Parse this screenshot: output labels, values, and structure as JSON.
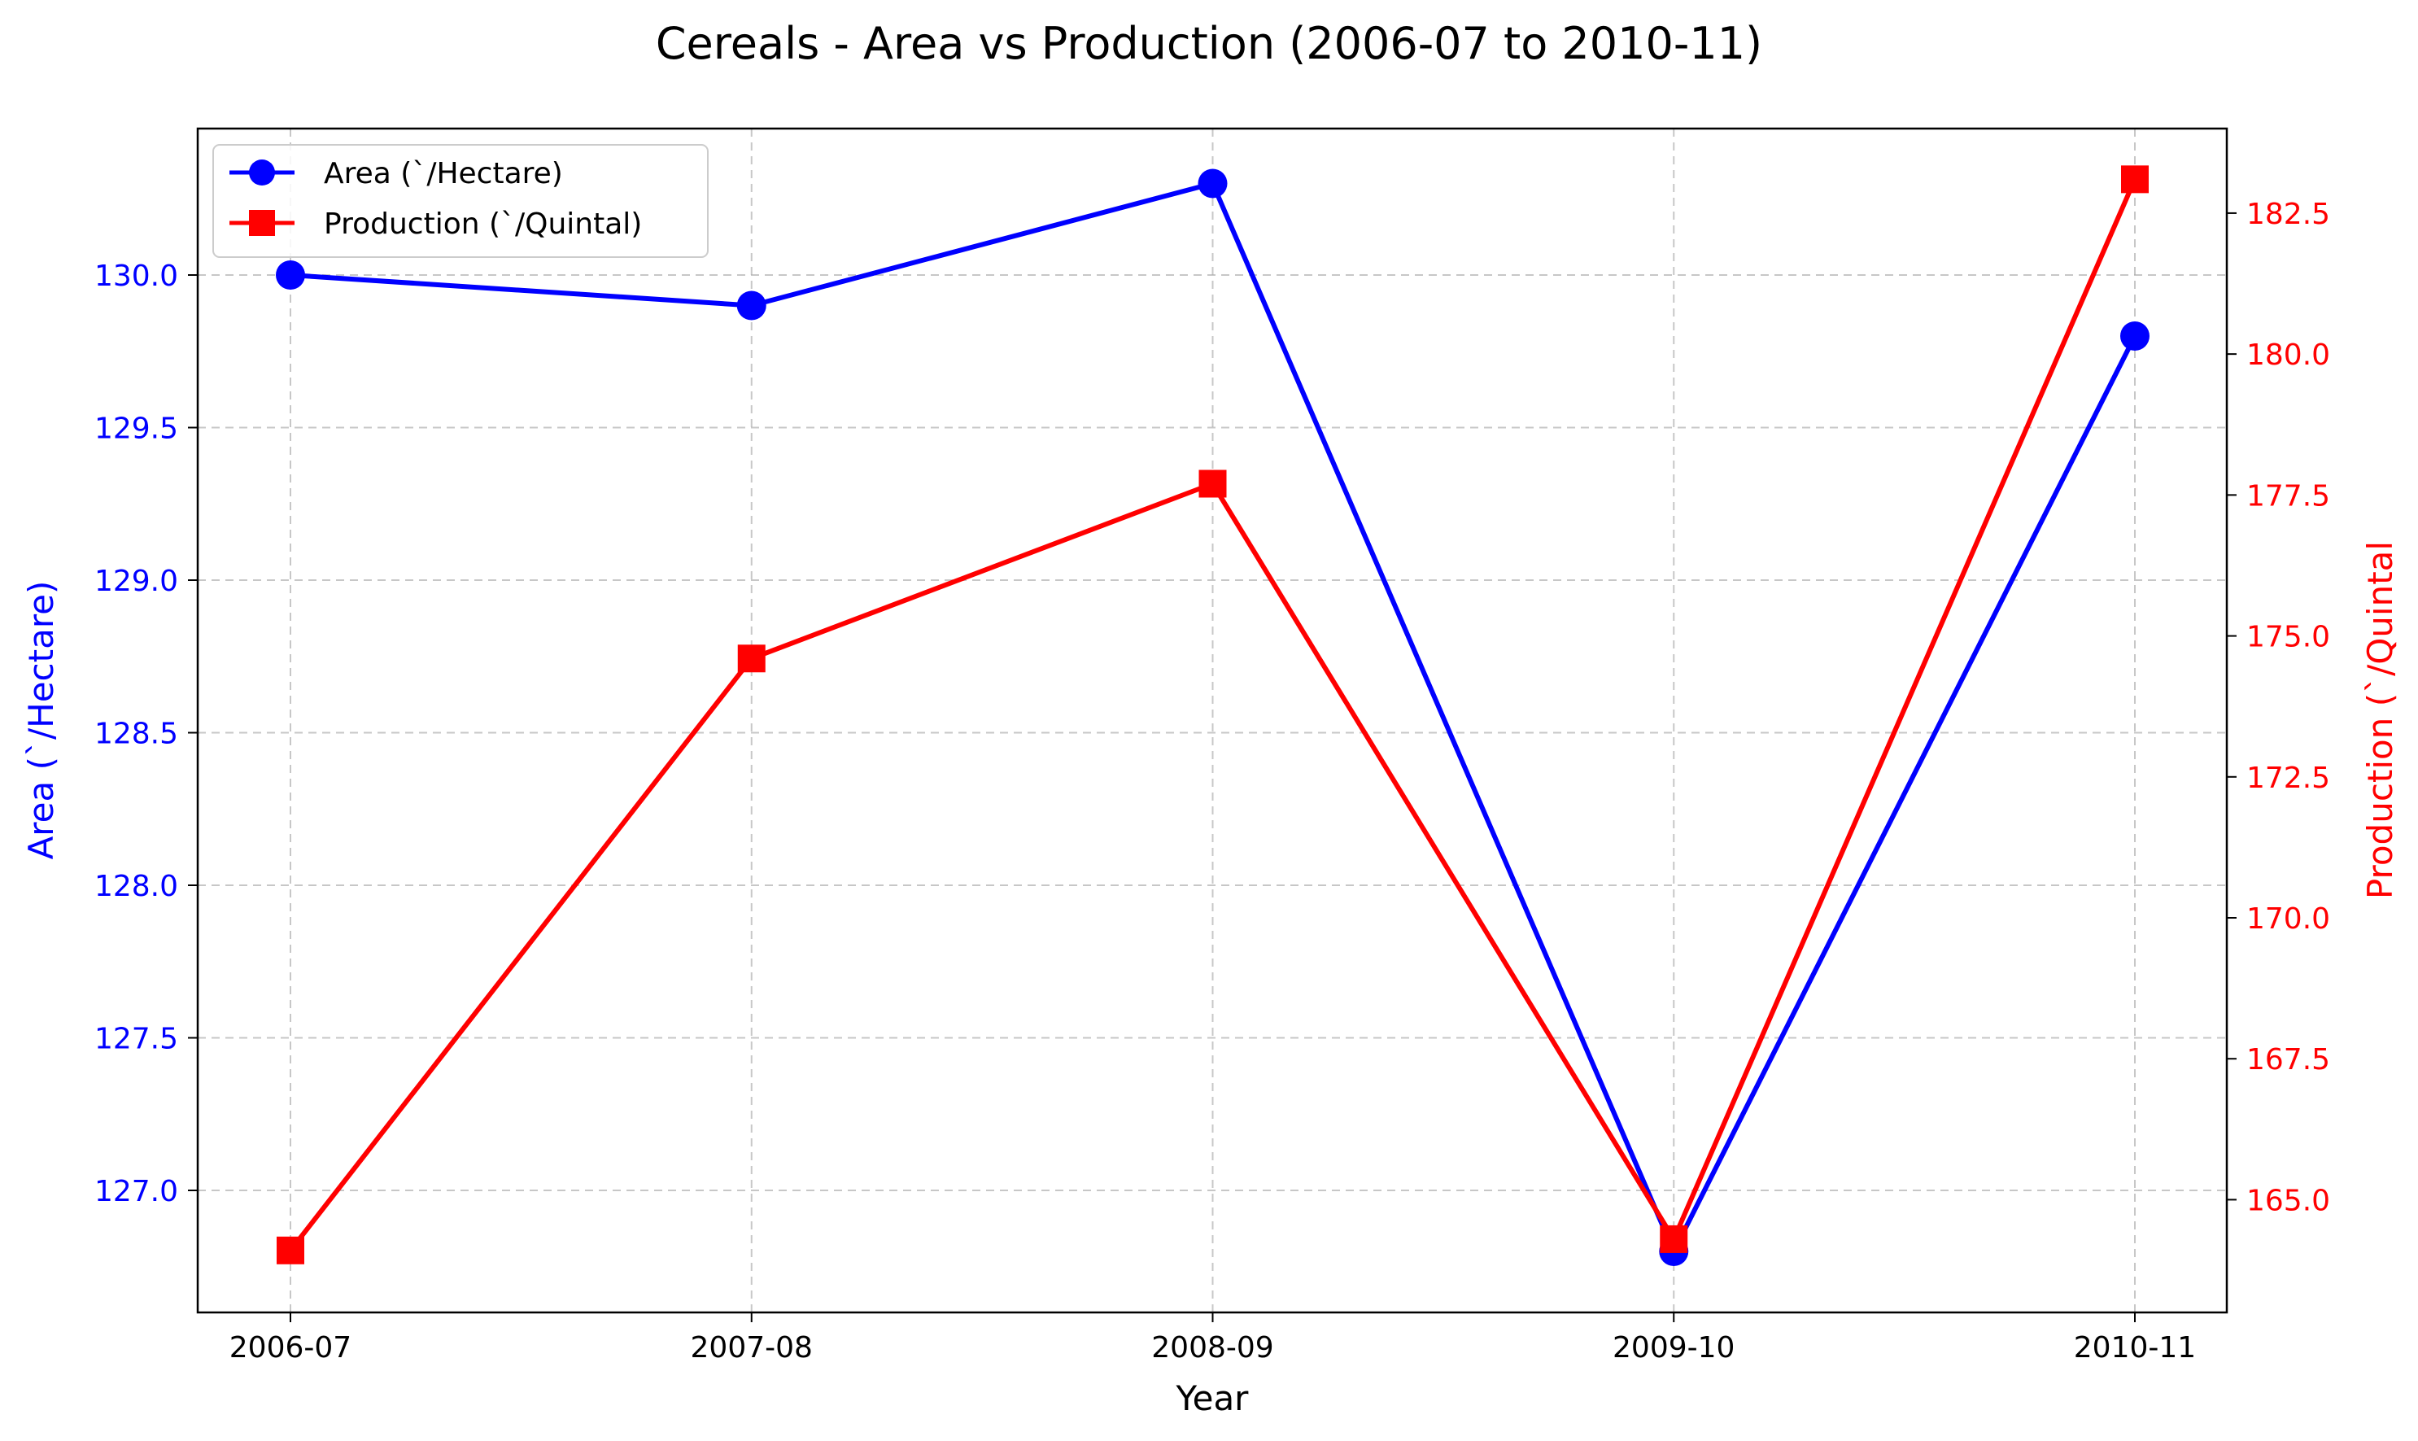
{
  "chart_data": {
    "type": "line",
    "title": "Cereals - Area vs Production (2006-07 to 2010-11)",
    "xlabel": "Year",
    "ylabel_left": "Area (`/Hectare)",
    "ylabel_right": "Production (`/Quintal",
    "categories": [
      "2006-07",
      "2007-08",
      "2008-09",
      "2009-10",
      "2010-11"
    ],
    "y_left_range": [
      126.6,
      130.48
    ],
    "y_right_range": [
      163.0,
      184.0
    ],
    "y_left_ticks": [
      "127.0",
      "127.5",
      "128.0",
      "128.5",
      "129.0",
      "129.5",
      "130.0"
    ],
    "y_right_ticks": [
      "165.0",
      "167.5",
      "170.0",
      "172.5",
      "175.0",
      "177.5",
      "180.0",
      "182.5"
    ],
    "grid": true,
    "legend_position": "upper-left",
    "series": [
      {
        "name": "Area (`/Hectare)",
        "axis": "left",
        "color": "#0000ff",
        "marker": "circle",
        "values": [
          130.0,
          129.9,
          130.3,
          126.8,
          129.8
        ]
      },
      {
        "name": "Production (`/Quintal)",
        "axis": "right",
        "color": "#ff0000",
        "marker": "square",
        "values": [
          164.1,
          174.6,
          177.7,
          164.3,
          183.1
        ]
      }
    ]
  }
}
